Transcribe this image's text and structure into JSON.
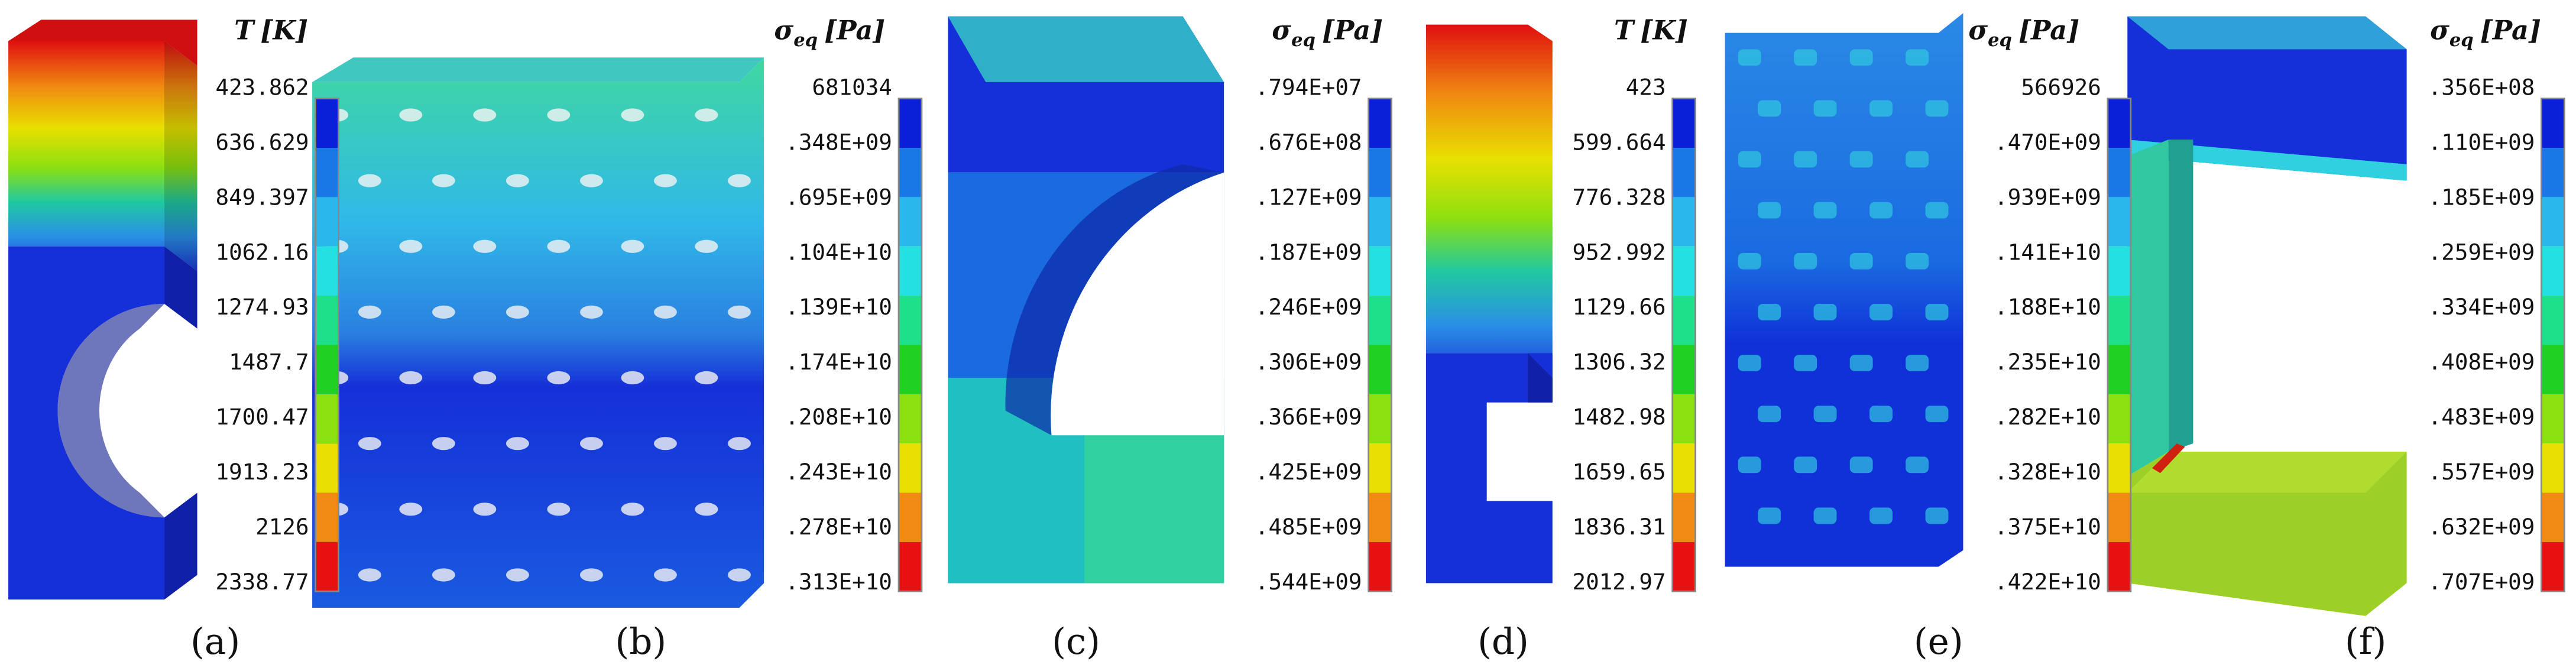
{
  "panels": [
    {
      "label": "(a)",
      "title": {
        "symbol": "T",
        "unit": "[K]"
      },
      "ticks": [
        "423.862",
        "636.629",
        "849.397",
        "1062.16",
        "1274.93",
        "1487.7",
        "1700.47",
        "1913.23",
        "2126",
        "2338.77"
      ]
    },
    {
      "label": "(b)",
      "title": {
        "symbol": "σ",
        "subscript": "eq",
        "unit": "[Pa]"
      },
      "ticks": [
        "681034",
        ".348E+09",
        ".695E+09",
        ".104E+10",
        ".139E+10",
        ".174E+10",
        ".208E+10",
        ".243E+10",
        ".278E+10",
        ".313E+10"
      ]
    },
    {
      "label": "(c)",
      "title": {
        "symbol": "σ",
        "subscript": "eq",
        "unit": "[Pa]"
      },
      "ticks": [
        ".794E+07",
        ".676E+08",
        ".127E+09",
        ".187E+09",
        ".246E+09",
        ".306E+09",
        ".366E+09",
        ".425E+09",
        ".485E+09",
        ".544E+09"
      ]
    },
    {
      "label": "(d)",
      "title": {
        "symbol": "T",
        "unit": "[K]"
      },
      "ticks": [
        "423",
        "599.664",
        "776.328",
        "952.992",
        "1129.66",
        "1306.32",
        "1482.98",
        "1659.65",
        "1836.31",
        "2012.97"
      ]
    },
    {
      "label": "(e)",
      "title": {
        "symbol": "σ",
        "subscript": "eq",
        "unit": "[Pa]"
      },
      "ticks": [
        "566926",
        ".470E+09",
        ".939E+09",
        ".141E+10",
        ".188E+10",
        ".235E+10",
        ".282E+10",
        ".328E+10",
        ".375E+10",
        ".422E+10"
      ]
    },
    {
      "label": "(f)",
      "title": {
        "symbol": "σ",
        "subscript": "eq",
        "unit": "[Pa]"
      },
      "ticks": [
        ".356E+08",
        ".110E+09",
        ".185E+09",
        ".259E+09",
        ".334E+09",
        ".408E+09",
        ".483E+09",
        ".557E+09",
        ".632E+09",
        ".707E+09"
      ]
    }
  ]
}
